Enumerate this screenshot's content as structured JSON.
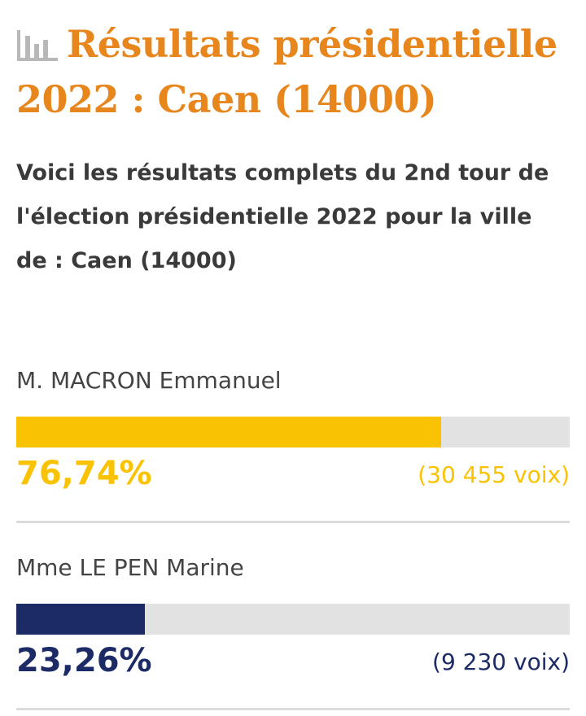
{
  "header": {
    "title": "Résultats présidentielle 2022 : Caen (14000)",
    "icon": "bar-chart-icon",
    "color": "#e8861e"
  },
  "intro": "Voici les résultats complets du 2nd tour de l'élection présidentielle 2022 pour la ville de : Caen (14000)",
  "chart_data": {
    "type": "bar",
    "orientation": "horizontal",
    "unit": "%",
    "range": [
      0,
      100
    ],
    "categories": [
      "M. MACRON Emmanuel",
      "Mme LE PEN Marine"
    ],
    "values": [
      76.74,
      23.26
    ],
    "series": [
      {
        "label": "M. MACRON Emmanuel",
        "value": 76.74,
        "percent_label": "76,74%",
        "votes_label": "(30 455 voix)",
        "color": "#f9c303"
      },
      {
        "label": "Mme LE PEN Marine",
        "value": 23.26,
        "percent_label": "23,26%",
        "votes_label": "(9 230 voix)",
        "color": "#1c2a66"
      }
    ],
    "track_color": "#e2e2e2"
  }
}
